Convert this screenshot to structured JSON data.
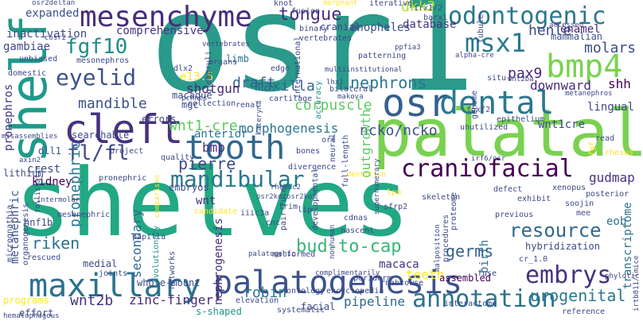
{
  "words": [
    {
      "text": "shelves",
      "color": "#22a884"
    },
    {
      "text": "osr1",
      "color": "#2a9a8a"
    },
    {
      "text": "palatal",
      "color": "#7ad151"
    },
    {
      "text": "shelf",
      "color": "#1f9a8a"
    },
    {
      "text": "osr",
      "color": "#35608d"
    },
    {
      "text": "cleft",
      "color": "#46327e"
    },
    {
      "text": "tooth",
      "color": "#31688e"
    },
    {
      "text": "maxillary",
      "color": "#2c728e"
    },
    {
      "text": "palatogenesis",
      "color": "#3b528b"
    },
    {
      "text": "mesenchyme",
      "color": "#472d7b"
    },
    {
      "text": "odontogenic",
      "color": "#2a788e"
    },
    {
      "text": "bmp4",
      "color": "#7ad151"
    },
    {
      "text": "dental",
      "color": "#2a788e"
    },
    {
      "text": "msx1",
      "color": "#2a788e"
    },
    {
      "text": "craniofacial",
      "color": "#440154"
    },
    {
      "text": "mandibular",
      "color": "#2a788e"
    },
    {
      "text": "fgf10",
      "color": "#238a8d"
    },
    {
      "text": "eyelid",
      "color": "#3b528b"
    },
    {
      "text": "tongue",
      "color": "#472d7b"
    },
    {
      "text": "embrys",
      "color": "#46327e"
    },
    {
      "text": "annotation",
      "color": "#2c728e"
    },
    {
      "text": "bud-to-cap",
      "color": "#35b779"
    },
    {
      "text": "resource",
      "color": "#31688e"
    },
    {
      "text": "germs",
      "color": "#35608d"
    },
    {
      "text": "riken",
      "color": "#2c728e"
    },
    {
      "text": "fl/fl",
      "color": "#3e4a89"
    },
    {
      "text": "pierre",
      "color": "#3e4a89"
    },
    {
      "text": "wnt1-cre",
      "color": "#5ec962"
    },
    {
      "text": "morphogenesis",
      "color": "#2a788e"
    },
    {
      "text": "robin",
      "color": "#2a788e"
    },
    {
      "text": "wnt2b",
      "color": "#46327e"
    },
    {
      "text": "zinc-finger",
      "color": "#482878"
    },
    {
      "text": "pipeline",
      "color": "#31688e"
    },
    {
      "text": "urogenital",
      "color": "#2a788e"
    },
    {
      "text": "maxilla",
      "color": "#31688e"
    },
    {
      "text": "draft",
      "color": "#35608d"
    },
    {
      "text": "nephrons",
      "color": "#2a788e"
    },
    {
      "text": "corpuscle",
      "color": "#5ec962"
    },
    {
      "text": "pax9",
      "color": "#482878"
    },
    {
      "text": "mandible",
      "color": "#3b528b"
    },
    {
      "text": "henle",
      "color": "#3e4a89"
    },
    {
      "text": "molars",
      "color": "#3e4a89"
    },
    {
      "text": "shh",
      "color": "#440154"
    },
    {
      "text": "downward",
      "color": "#472d7b"
    },
    {
      "text": "dkk2",
      "color": "#b5de2b"
    },
    {
      "text": "ncko/ncko",
      "color": "#3b528b"
    },
    {
      "text": "pronephric",
      "color": "#2a788e"
    },
    {
      "text": "secondary",
      "color": "#31688e"
    },
    {
      "text": "teeth",
      "color": "#fde725"
    },
    {
      "text": "metanephric",
      "color": "#3b528b"
    },
    {
      "text": "expanded",
      "color": "#3b528b"
    },
    {
      "text": "inactivation",
      "color": "#3e4a89"
    },
    {
      "text": "comprehensive",
      "color": "#46327e"
    },
    {
      "text": "anopheles",
      "color": "#3e4a89"
    },
    {
      "text": "enamel",
      "color": "#482878"
    },
    {
      "text": "database",
      "color": "#46327e"
    },
    {
      "text": "mammalian",
      "color": "#3b528b"
    },
    {
      "text": "e13.5",
      "color": "#fde725"
    },
    {
      "text": "shotgun",
      "color": "#482878"
    },
    {
      "text": "gambiae",
      "color": "#3e4a89"
    },
    {
      "text": "lingual",
      "color": "#3e4a89"
    },
    {
      "text": "kidney",
      "color": "#440154"
    },
    {
      "text": "crest",
      "color": "#3e4a89"
    },
    {
      "text": "bmp",
      "color": "#472d7b"
    },
    {
      "text": "anterior",
      "color": "#2c728e"
    },
    {
      "text": "wnt",
      "color": "#472d7b"
    },
    {
      "text": "gudmap",
      "color": "#46327e"
    },
    {
      "text": "eob",
      "color": "#2c728e"
    },
    {
      "text": "birth",
      "color": "#2c728e"
    },
    {
      "text": "outgrowth",
      "color": "#5ec962"
    },
    {
      "text": "macaca",
      "color": "#46327e"
    },
    {
      "text": "pronephros",
      "color": "#46327e"
    },
    {
      "text": "nephrogenesis",
      "color": "#472d7b"
    },
    {
      "text": "transcriptome",
      "color": "#2c728e"
    },
    {
      "text": "hybridization",
      "color": "#3e4a89"
    },
    {
      "text": "wnt1cre",
      "color": "#3e4a89"
    },
    {
      "text": "limb",
      "color": "#2c728e"
    },
    {
      "text": "cranial",
      "color": "#3e4a89"
    },
    {
      "text": "searchable",
      "color": "#3e4a89"
    },
    {
      "text": "embryos",
      "color": "#3e4a89"
    },
    {
      "text": "hnf1b",
      "color": "#3e4a89"
    },
    {
      "text": "whole-mount",
      "color": "#3e4a89"
    },
    {
      "text": "medial",
      "color": "#3e4a89"
    },
    {
      "text": "assembled",
      "color": "#440154"
    },
    {
      "text": "facial",
      "color": "#3e4a89"
    },
    {
      "text": "lithium",
      "color": "#3b528b"
    },
    {
      "text": "dll1",
      "color": "#3b528b"
    },
    {
      "text": "mgc",
      "color": "#3e4a89"
    },
    {
      "text": "macaque",
      "color": "#3e4a89"
    },
    {
      "text": "errors",
      "color": "#3e4a89"
    },
    {
      "text": "programs",
      "color": "#fde725"
    },
    {
      "text": "effort",
      "color": "#3e4a89"
    },
    {
      "text": "s-shaped",
      "color": "#21918c"
    },
    {
      "text": "networks",
      "color": "#3e4a89"
    },
    {
      "text": "evolutionary",
      "color": "#21918c"
    },
    {
      "text": "nascent",
      "color": "#3e4a89"
    },
    {
      "text": "cdnas",
      "color": "#3e4a89"
    },
    {
      "text": "periderm",
      "color": "#3e4a89"
    },
    {
      "text": "skeleton",
      "color": "#3e4a89"
    },
    {
      "text": "xenopus",
      "color": "#3e4a89"
    },
    {
      "text": "posterior",
      "color": "#3e4a89"
    },
    {
      "text": "genome",
      "color": "#3e4a89"
    },
    {
      "text": "epithelium",
      "color": "#3e4a89"
    },
    {
      "text": "quality",
      "color": "#3e4a89"
    },
    {
      "text": "candidate",
      "color": "#fde725"
    },
    {
      "text": "malformed",
      "color": "#3e4a89"
    },
    {
      "text": "interactome",
      "color": "#3e4a89"
    },
    {
      "text": "developmental",
      "color": "#3e4a89"
    },
    {
      "text": "pair-rule",
      "color": "#3e4a89"
    },
    {
      "text": "rescued",
      "color": "#3e4a89"
    },
    {
      "text": "micrognathia",
      "color": "#3e4a89"
    },
    {
      "text": "organogenesis",
      "color": "#3e4a89"
    },
    {
      "text": "international",
      "color": "#3e4a89"
    },
    {
      "text": "accuracy",
      "color": "#21918c"
    },
    {
      "text": "collection",
      "color": "#3e4a89"
    },
    {
      "text": "fusion",
      "color": "#3e4a89"
    },
    {
      "text": "binary",
      "color": "#3e4a89"
    },
    {
      "text": "iterative",
      "color": "#3e4a89"
    },
    {
      "text": "irx1/2",
      "color": "#3e4a89"
    },
    {
      "text": "barx1",
      "color": "#3e4a89"
    },
    {
      "text": "knot",
      "color": "#3e4a89"
    },
    {
      "text": "vertebrates",
      "color": "#3e4a89"
    },
    {
      "text": "patterning",
      "color": "#3e4a89"
    },
    {
      "text": "tubule",
      "color": "#3e4a89"
    },
    {
      "text": "situ",
      "color": "#3e4a89"
    },
    {
      "text": "bilateral",
      "color": "#3e4a89"
    },
    {
      "text": "cartilage",
      "color": "#3e4a89"
    },
    {
      "text": "renal",
      "color": "#3e4a89"
    },
    {
      "text": "edge",
      "color": "#3e4a89"
    },
    {
      "text": "organs",
      "color": "#3e4a89"
    },
    {
      "text": "dlx2",
      "color": "#3e4a89"
    },
    {
      "text": "glomeruli",
      "color": "#3e4a89"
    },
    {
      "text": "unbiased",
      "color": "#3e4a89"
    },
    {
      "text": "domestic",
      "color": "#3e4a89"
    },
    {
      "text": "mesonephros",
      "color": "#3e4a89"
    },
    {
      "text": "neural",
      "color": "#3e4a89"
    },
    {
      "text": "foxf2",
      "color": "#3e4a89"
    },
    {
      "text": "unutilized",
      "color": "#3e4a89"
    },
    {
      "text": "read",
      "color": "#3e4a89"
    },
    {
      "text": "rhesus",
      "color": "#fde725"
    },
    {
      "text": "fgf",
      "color": "#fde725"
    },
    {
      "text": "orf",
      "color": "#3e4a89"
    },
    {
      "text": "bones",
      "color": "#3e4a89"
    },
    {
      "text": "divergence",
      "color": "#3e4a89"
    },
    {
      "text": "project",
      "color": "#3e4a89"
    },
    {
      "text": "defect",
      "color": "#3e4a89"
    },
    {
      "text": "exhibit",
      "color": "#3e4a89"
    },
    {
      "text": "soojin",
      "color": "#3e4a89"
    },
    {
      "text": "previous",
      "color": "#3e4a89"
    },
    {
      "text": "mee",
      "color": "#3e4a89"
    },
    {
      "text": "cr_1.0",
      "color": "#3e4a89"
    },
    {
      "text": "fuse",
      "color": "#3e4a89"
    },
    {
      "text": "proteome",
      "color": "#3e4a89"
    },
    {
      "text": "procedures",
      "color": "#3e4a89"
    },
    {
      "text": "lpm",
      "color": "#fde725"
    },
    {
      "text": "sfrp2",
      "color": "#3e4a89"
    },
    {
      "text": "full-length",
      "color": "#3e4a89"
    },
    {
      "text": "ontology",
      "color": "#3e4a89"
    },
    {
      "text": "encyclopedia",
      "color": "#3e4a89"
    },
    {
      "text": "elevation",
      "color": "#3e4a89"
    },
    {
      "text": "systematic",
      "color": "#3e4a89"
    },
    {
      "text": "reference",
      "color": "#3e4a89"
    },
    {
      "text": "lip",
      "color": "#3e4a89"
    },
    {
      "text": "joints",
      "color": "#3e4a89"
    },
    {
      "text": "papilla",
      "color": "#3e4a89"
    },
    {
      "text": "mesenephric",
      "color": "#3e4a89"
    },
    {
      "text": "trim",
      "color": "#3e4a89"
    },
    {
      "text": "iiic3a",
      "color": "#3e4a89"
    },
    {
      "text": "cnc",
      "color": "#3e4a89"
    },
    {
      "text": "rnabrowse",
      "color": "#3e4a89"
    },
    {
      "text": "hematophagous",
      "color": "#3e4a89"
    },
    {
      "text": "osr2deltan",
      "color": "#3e4a89"
    },
    {
      "text": "morphant",
      "color": "#fde725"
    },
    {
      "text": "cosr2",
      "color": "#3e4a89"
    },
    {
      "text": "accessed",
      "color": "#3e4a89"
    },
    {
      "text": "vertebrates",
      "color": "#3e4a89"
    },
    {
      "text": "makova",
      "color": "#3e4a89"
    },
    {
      "text": "multiinstitutional",
      "color": "#3e4a89"
    },
    {
      "text": "lhx1",
      "color": "#3e4a89"
    },
    {
      "text": "metanephros",
      "color": "#3e4a89"
    },
    {
      "text": "wnt2ba",
      "color": "#3e4a89"
    },
    {
      "text": "pchnts",
      "color": "#3e4a89"
    },
    {
      "text": "misassemblies",
      "color": "#3e4a89"
    },
    {
      "text": "axin2",
      "color": "#3e4a89"
    },
    {
      "text": "follistatin",
      "color": "#3e4a89"
    },
    {
      "text": "intermolar",
      "color": "#3e4a89"
    },
    {
      "text": "kateryna",
      "color": "#3e4a89"
    },
    {
      "text": "rhemac2",
      "color": "#3e4a89"
    },
    {
      "text": "dentition",
      "color": "#fde725"
    },
    {
      "text": "complimentarily",
      "color": "#3e4a89"
    },
    {
      "text": "comparison",
      "color": "#fde725"
    },
    {
      "text": "supernumerary",
      "color": "#3e4a89"
    },
    {
      "text": "palatogenic",
      "color": "#3e4a89"
    },
    {
      "text": "nonhuman",
      "color": "#3e4a89"
    },
    {
      "text": "malposition",
      "color": "#3e4a89"
    },
    {
      "text": "osr2ko/osr2ko",
      "color": "#3e4a89"
    },
    {
      "text": "ppfia3",
      "color": "#3e4a89"
    },
    {
      "text": "alpha-cre",
      "color": "#3e4a89"
    },
    {
      "text": "irf6/osr",
      "color": "#3e4a89"
    },
    {
      "text": "phylotic",
      "color": "#3e4a89"
    },
    {
      "text": "irtb811/lmice",
      "color": "#3e4a89"
    },
    {
      "text": "pronephric",
      "color": "#3e4a89"
    }
  ]
}
